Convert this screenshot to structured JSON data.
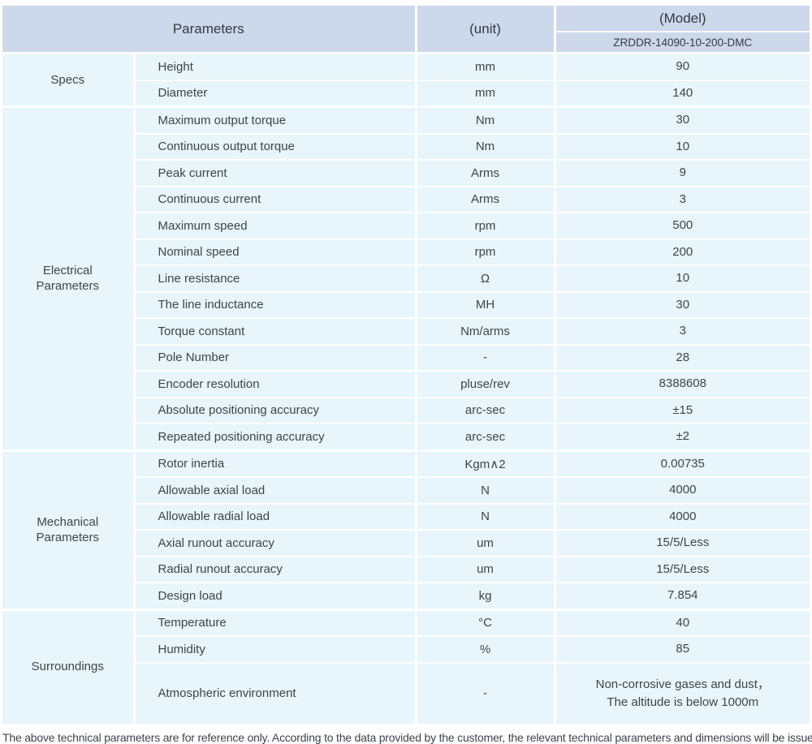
{
  "colors": {
    "header_bg": "#cdd8ea",
    "row_bg": "#e8f5fb",
    "grid": "#ffffff",
    "text": "#3d444c"
  },
  "header": {
    "parameters_label": "Parameters",
    "unit_label": "(unit)",
    "model_label": "(Model)",
    "model_number": "ZRDDR-14090-10-200-DMC"
  },
  "groups": [
    {
      "name": "Specs",
      "rows": [
        {
          "param": "Height",
          "unit": "mm",
          "value": "90"
        },
        {
          "param": "Diameter",
          "unit": "mm",
          "value": "140"
        }
      ]
    },
    {
      "name": "Electrical Parameters",
      "rows": [
        {
          "param": "Maximum output torque",
          "unit": "Nm",
          "value": "30"
        },
        {
          "param": "Continuous output torque",
          "unit": "Nm",
          "value": "10"
        },
        {
          "param": "Peak current",
          "unit": "Arms",
          "value": "9"
        },
        {
          "param": "Continuous current",
          "unit": "Arms",
          "value": "3"
        },
        {
          "param": "Maximum speed",
          "unit": "rpm",
          "value": "500"
        },
        {
          "param": "Nominal speed",
          "unit": "rpm",
          "value": "200"
        },
        {
          "param": "Line resistance",
          "unit": "Ω",
          "value": "10"
        },
        {
          "param": "The line inductance",
          "unit": "MH",
          "value": "30"
        },
        {
          "param": "Torque constant",
          "unit": "Nm/arms",
          "value": "3"
        },
        {
          "param": "Pole Number",
          "unit": "-",
          "value": "28"
        },
        {
          "param": "Encoder resolution",
          "unit": "pluse/rev",
          "value": "8388608"
        },
        {
          "param": "Absolute positioning accuracy",
          "unit": "arc-sec",
          "value": "±15"
        },
        {
          "param": "Repeated positioning accuracy",
          "unit": "arc-sec",
          "value": "±2"
        }
      ]
    },
    {
      "name": "Mechanical Parameters",
      "rows": [
        {
          "param": "Rotor inertia",
          "unit": "Kgm∧2",
          "value": "0.00735"
        },
        {
          "param": "Allowable axial load",
          "unit": "N",
          "value": "4000"
        },
        {
          "param": "Allowable radial load",
          "unit": "N",
          "value": "4000"
        },
        {
          "param": "Axial runout accuracy",
          "unit": "um",
          "value": "15/5/Less"
        },
        {
          "param": "Radial runout accuracy",
          "unit": "um",
          "value": "15/5/Less"
        },
        {
          "param": "Design load",
          "unit": "kg",
          "value": "7.854"
        }
      ]
    },
    {
      "name": "Surroundings",
      "rows": [
        {
          "param": "Temperature",
          "unit": "°C",
          "value": "40"
        },
        {
          "param": "Humidity",
          "unit": "%",
          "value": "85"
        },
        {
          "param": "Atmospheric environment",
          "unit": "-",
          "value": "Non-corrosive gases and dust，\nThe altitude is below 1000m"
        }
      ]
    }
  ],
  "footer": {
    "note": "The above technical parameters are for reference only. According to the data provided by the customer, the relevant technical parameters and dimensions will be issued."
  }
}
